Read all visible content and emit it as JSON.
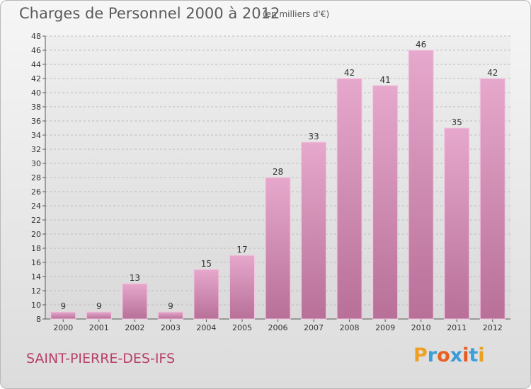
{
  "title": "Charges de Personnel 2000 à 2012",
  "subtitle": "(en milliers d'€)",
  "city": "SAINT-PIERRE-DES-IFS",
  "brand": {
    "letters": [
      "P",
      "r",
      "o",
      "x",
      "i",
      "t",
      "i"
    ],
    "colors": [
      "#f0a020",
      "#3aa0d8",
      "#e86020",
      "#3a9ad8",
      "#e85a20",
      "#3aa0d8",
      "#e8a020"
    ]
  },
  "colors": {
    "bar_top": "#e6a8cc",
    "bar_bottom": "#b87098",
    "bar_edge": "#f2c8e0"
  },
  "chart_data": {
    "type": "bar",
    "title": "Charges de Personnel 2000 à 2012",
    "categories": [
      "2000",
      "2001",
      "2002",
      "2003",
      "2004",
      "2005",
      "2006",
      "2007",
      "2008",
      "2009",
      "2010",
      "2011",
      "2012"
    ],
    "values": [
      9,
      9,
      13,
      9,
      15,
      17,
      28,
      33,
      42,
      41,
      46,
      35,
      42
    ],
    "ylim": [
      8,
      48
    ],
    "yticks": [
      8,
      10,
      12,
      14,
      16,
      18,
      20,
      22,
      24,
      26,
      28,
      30,
      32,
      34,
      36,
      38,
      40,
      42,
      44,
      46,
      48
    ],
    "grid": true,
    "legend": "none"
  }
}
